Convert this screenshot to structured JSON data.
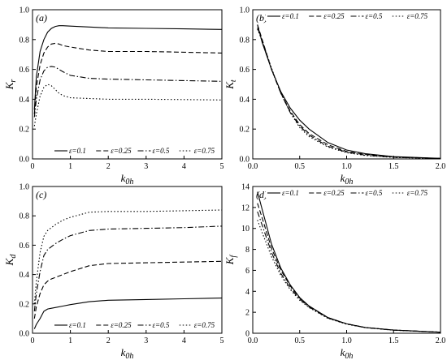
{
  "chart_data": [
    {
      "type": "line",
      "panel_label": "(a)",
      "ylabel": "K_r",
      "xlabel": "k_0h",
      "xlim": [
        0,
        5
      ],
      "ylim": [
        0,
        1.0
      ],
      "xticks": [
        0,
        1,
        2,
        3,
        4,
        5
      ],
      "yticks": [
        0,
        0.2,
        0.4,
        0.6,
        0.8,
        1.0
      ],
      "ytick_labels": [
        "0.0",
        "0.2",
        "0.4",
        "0.6",
        "0.8",
        "1.0"
      ],
      "grid": false,
      "legend_position": "bottom-right",
      "series": [
        {
          "name": "ε=0.1",
          "dash": "solid",
          "x": [
            0.05,
            0.1,
            0.2,
            0.3,
            0.4,
            0.5,
            0.6,
            0.7,
            0.8,
            1.0,
            1.5,
            2.0,
            3.0,
            4.0,
            5.0
          ],
          "y": [
            0.33,
            0.55,
            0.72,
            0.8,
            0.85,
            0.875,
            0.888,
            0.893,
            0.893,
            0.89,
            0.884,
            0.878,
            0.875,
            0.872,
            0.868
          ]
        },
        {
          "name": "ε=0.25",
          "dash": "dashed",
          "x": [
            0.05,
            0.1,
            0.2,
            0.3,
            0.4,
            0.5,
            0.6,
            0.7,
            0.8,
            1.0,
            1.5,
            2.0,
            3.0,
            4.0,
            5.0
          ],
          "y": [
            0.3,
            0.48,
            0.63,
            0.71,
            0.75,
            0.77,
            0.775,
            0.77,
            0.76,
            0.75,
            0.73,
            0.72,
            0.72,
            0.715,
            0.71
          ]
        },
        {
          "name": "ε=0.5",
          "dash": "dash-dot",
          "x": [
            0.05,
            0.1,
            0.2,
            0.3,
            0.4,
            0.5,
            0.6,
            0.7,
            0.8,
            1.0,
            1.5,
            2.0,
            3.0,
            4.0,
            5.0
          ],
          "y": [
            0.28,
            0.4,
            0.53,
            0.59,
            0.615,
            0.62,
            0.615,
            0.6,
            0.585,
            0.56,
            0.54,
            0.535,
            0.53,
            0.525,
            0.52
          ]
        },
        {
          "name": "ε=0.75",
          "dash": "dotted",
          "x": [
            0.05,
            0.1,
            0.2,
            0.3,
            0.4,
            0.5,
            0.6,
            0.7,
            0.8,
            1.0,
            1.5,
            2.0,
            3.0,
            4.0,
            5.0
          ],
          "y": [
            0.22,
            0.3,
            0.42,
            0.48,
            0.5,
            0.49,
            0.465,
            0.44,
            0.425,
            0.41,
            0.405,
            0.4,
            0.4,
            0.398,
            0.395
          ]
        }
      ]
    },
    {
      "type": "line",
      "panel_label": "(b)",
      "ylabel": "K_t",
      "xlabel": "k_0h",
      "xlim": [
        0,
        2.0
      ],
      "ylim": [
        0,
        1.0
      ],
      "xticks": [
        0,
        0.5,
        1.0,
        1.5,
        2.0
      ],
      "xtick_labels": [
        "0.0",
        "0.5",
        "1.0",
        "1.5",
        "2.0"
      ],
      "yticks": [
        0,
        0.2,
        0.4,
        0.6,
        0.8,
        1.0
      ],
      "ytick_labels": [
        "0.0",
        "0.2",
        "0.4",
        "0.6",
        "0.8",
        "1.0"
      ],
      "grid": false,
      "legend_position": "top",
      "series": [
        {
          "name": "ε=0.1",
          "dash": "solid",
          "x": [
            0.05,
            0.1,
            0.2,
            0.3,
            0.4,
            0.5,
            0.6,
            0.8,
            1.0,
            1.2,
            1.5,
            2.0
          ],
          "y": [
            0.9,
            0.78,
            0.6,
            0.45,
            0.34,
            0.26,
            0.2,
            0.11,
            0.06,
            0.035,
            0.015,
            0.004
          ]
        },
        {
          "name": "ε=0.25",
          "dash": "dashed",
          "x": [
            0.05,
            0.1,
            0.2,
            0.3,
            0.4,
            0.5,
            0.6,
            0.8,
            1.0,
            1.2,
            1.5,
            2.0
          ],
          "y": [
            0.9,
            0.8,
            0.6,
            0.44,
            0.32,
            0.23,
            0.17,
            0.095,
            0.05,
            0.03,
            0.013,
            0.003
          ]
        },
        {
          "name": "ε=0.5",
          "dash": "dash-dot",
          "x": [
            0.05,
            0.1,
            0.2,
            0.3,
            0.4,
            0.5,
            0.6,
            0.8,
            1.0,
            1.2,
            1.5,
            2.0
          ],
          "y": [
            0.88,
            0.79,
            0.6,
            0.44,
            0.31,
            0.22,
            0.16,
            0.085,
            0.045,
            0.025,
            0.011,
            0.003
          ]
        },
        {
          "name": "ε=0.75",
          "dash": "dotted",
          "x": [
            0.05,
            0.1,
            0.2,
            0.3,
            0.4,
            0.5,
            0.6,
            0.8,
            1.0,
            1.2,
            1.5,
            2.0
          ],
          "y": [
            0.87,
            0.79,
            0.61,
            0.44,
            0.31,
            0.21,
            0.15,
            0.08,
            0.042,
            0.023,
            0.01,
            0.002
          ]
        }
      ]
    },
    {
      "type": "line",
      "panel_label": "(c)",
      "ylabel": "K_d",
      "xlabel": "k_0h",
      "xlim": [
        0,
        5
      ],
      "ylim": [
        0,
        1.0
      ],
      "xticks": [
        0,
        1,
        2,
        3,
        4,
        5
      ],
      "yticks": [
        0,
        0.2,
        0.4,
        0.6,
        0.8,
        1.0
      ],
      "ytick_labels": [
        "0.0",
        "0.2",
        "0.4",
        "0.6",
        "0.8",
        "1.0"
      ],
      "grid": false,
      "legend_position": "bottom-right",
      "series": [
        {
          "name": "ε=0.1",
          "dash": "solid",
          "x": [
            0.05,
            0.1,
            0.2,
            0.3,
            0.4,
            0.5,
            0.6,
            0.8,
            1.0,
            1.5,
            2.0,
            3.0,
            4.0,
            5.0
          ],
          "y": [
            0.03,
            0.06,
            0.1,
            0.15,
            0.165,
            0.17,
            0.175,
            0.185,
            0.195,
            0.215,
            0.225,
            0.23,
            0.235,
            0.24
          ]
        },
        {
          "name": "ε=0.25",
          "dash": "dashed",
          "x": [
            0.05,
            0.1,
            0.2,
            0.3,
            0.4,
            0.5,
            0.6,
            0.8,
            1.0,
            1.5,
            2.0,
            3.0,
            4.0,
            5.0
          ],
          "y": [
            0.1,
            0.18,
            0.27,
            0.33,
            0.355,
            0.37,
            0.38,
            0.4,
            0.42,
            0.46,
            0.475,
            0.48,
            0.485,
            0.49
          ]
        },
        {
          "name": "ε=0.5",
          "dash": "dash-dot",
          "x": [
            0.05,
            0.1,
            0.2,
            0.3,
            0.4,
            0.5,
            0.6,
            0.8,
            1.0,
            1.5,
            2.0,
            3.0,
            4.0,
            5.0
          ],
          "y": [
            0.15,
            0.27,
            0.42,
            0.53,
            0.57,
            0.59,
            0.61,
            0.64,
            0.665,
            0.7,
            0.71,
            0.715,
            0.72,
            0.73
          ]
        },
        {
          "name": "ε=0.75",
          "dash": "dotted",
          "x": [
            0.05,
            0.1,
            0.2,
            0.3,
            0.4,
            0.5,
            0.6,
            0.8,
            1.0,
            1.5,
            2.0,
            3.0,
            4.0,
            5.0
          ],
          "y": [
            0.2,
            0.35,
            0.55,
            0.66,
            0.7,
            0.72,
            0.74,
            0.77,
            0.79,
            0.825,
            0.83,
            0.83,
            0.835,
            0.84
          ]
        }
      ]
    },
    {
      "type": "line",
      "panel_label": "(d)",
      "ylabel": "K_f",
      "xlabel": "k_0h",
      "xlim": [
        0,
        2.0
      ],
      "ylim": [
        0,
        14
      ],
      "xticks": [
        0,
        0.5,
        1.0,
        1.5,
        2.0
      ],
      "xtick_labels": [
        "0.0",
        "0.5",
        "1.0",
        "1.5",
        "2.0"
      ],
      "yticks": [
        0,
        2,
        4,
        6,
        8,
        10,
        12,
        14
      ],
      "grid": false,
      "legend_position": "top",
      "series": [
        {
          "name": "ε=0.1",
          "dash": "solid",
          "x": [
            0.05,
            0.1,
            0.2,
            0.3,
            0.4,
            0.5,
            0.6,
            0.8,
            1.0,
            1.2,
            1.5,
            2.0
          ],
          "y": [
            13.5,
            11.8,
            8.5,
            6.2,
            4.6,
            3.4,
            2.6,
            1.5,
            0.9,
            0.55,
            0.3,
            0.1
          ]
        },
        {
          "name": "ε=0.25",
          "dash": "dashed",
          "x": [
            0.05,
            0.1,
            0.2,
            0.3,
            0.4,
            0.5,
            0.6,
            0.8,
            1.0,
            1.2,
            1.5,
            2.0
          ],
          "y": [
            12.4,
            11.0,
            8.1,
            6.0,
            4.5,
            3.35,
            2.55,
            1.5,
            0.9,
            0.55,
            0.3,
            0.1
          ]
        },
        {
          "name": "ε=0.5",
          "dash": "dash-dot",
          "x": [
            0.05,
            0.1,
            0.2,
            0.3,
            0.4,
            0.5,
            0.6,
            0.8,
            1.0,
            1.2,
            1.5,
            2.0
          ],
          "y": [
            11.6,
            10.3,
            7.7,
            5.7,
            4.3,
            3.25,
            2.5,
            1.45,
            0.88,
            0.54,
            0.3,
            0.1
          ]
        },
        {
          "name": "ε=0.75",
          "dash": "dotted",
          "x": [
            0.05,
            0.1,
            0.2,
            0.3,
            0.4,
            0.5,
            0.6,
            0.8,
            1.0,
            1.2,
            1.5,
            2.0
          ],
          "y": [
            10.8,
            9.6,
            7.3,
            5.5,
            4.15,
            3.15,
            2.45,
            1.42,
            0.86,
            0.53,
            0.29,
            0.1
          ]
        }
      ]
    }
  ]
}
